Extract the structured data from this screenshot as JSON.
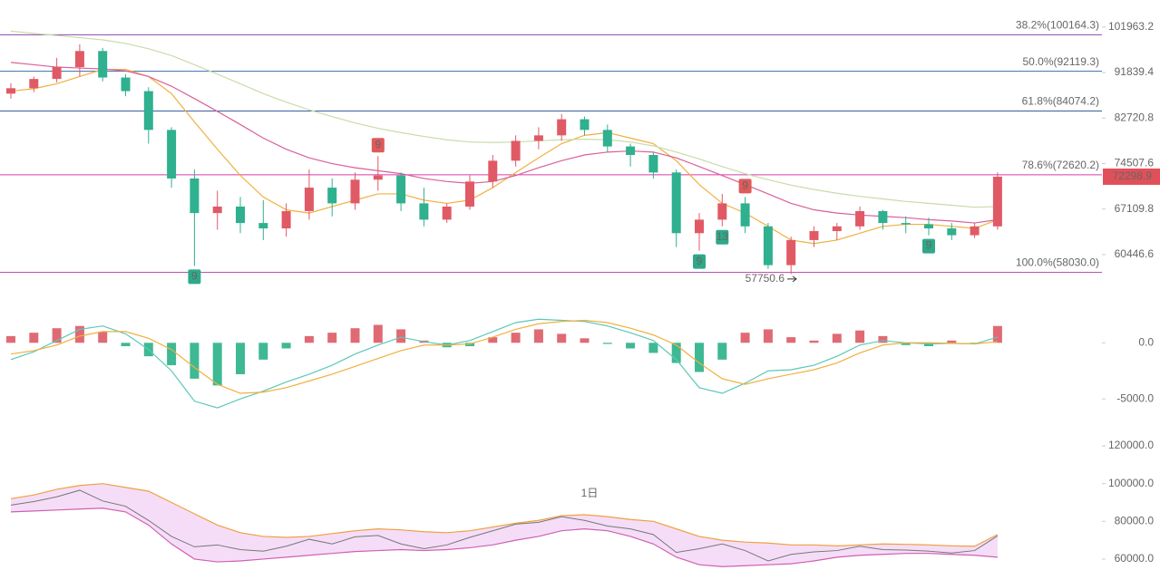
{
  "chart_data": [
    {
      "type": "candlestick",
      "log_scale": true,
      "ylim": [
        56900,
        108500
      ],
      "yticks": [
        101963.2,
        91839.4,
        82720.8,
        74507.6,
        67109.8,
        60446.6
      ],
      "up_color": "#e05a66",
      "down_color": "#2fb08f",
      "open": [
        87500,
        88600,
        90500,
        93000,
        96500,
        90800,
        88000,
        80500,
        72000,
        66500,
        67500,
        65000,
        64200,
        66800,
        70500,
        68000,
        71800,
        72500,
        68000,
        65500,
        67500,
        71500,
        75000,
        78500,
        79500,
        82500,
        80500,
        77500,
        76000,
        73000,
        63500,
        65500,
        68000,
        64500,
        59000,
        62500,
        63800,
        64500,
        66800,
        65000,
        64800,
        64200,
        63200,
        64500
      ],
      "high": [
        89600,
        91000,
        95000,
        98000,
        97200,
        91500,
        88800,
        81000,
        73500,
        70000,
        69000,
        68500,
        68000,
        73500,
        72000,
        73000,
        75800,
        73000,
        70500,
        68000,
        72500,
        76000,
        79500,
        81000,
        83500,
        83000,
        81500,
        78000,
        76500,
        73500,
        66500,
        69500,
        69000,
        65000,
        63000,
        64500,
        65000,
        67500,
        67000,
        66000,
        65800,
        65000,
        65000,
        73000
      ],
      "low": [
        86500,
        87800,
        89800,
        91000,
        90000,
        87000,
        78000,
        70500,
        58900,
        64000,
        63500,
        62500,
        63000,
        65500,
        66000,
        67000,
        70000,
        66800,
        64500,
        65000,
        67000,
        70500,
        74000,
        77000,
        78500,
        79500,
        76500,
        74000,
        72000,
        61500,
        61000,
        64500,
        63500,
        58500,
        57800,
        61500,
        62500,
        64000,
        64000,
        63500,
        63200,
        62500,
        62800,
        64000
      ],
      "close": [
        88600,
        90500,
        93000,
        96500,
        90800,
        88000,
        80500,
        72000,
        66500,
        67500,
        65000,
        64200,
        66800,
        70500,
        68000,
        71800,
        72500,
        68000,
        65500,
        67500,
        71500,
        75000,
        78500,
        79500,
        82500,
        80500,
        77500,
        76000,
        73000,
        63500,
        65500,
        68000,
        64500,
        59000,
        62500,
        63800,
        64500,
        66800,
        65000,
        64800,
        64200,
        63200,
        64500,
        72300
      ],
      "series": [
        {
          "color": "#f0b040",
          "values": [
            88000,
            88500,
            89500,
            91000,
            92500,
            92500,
            91000,
            87500,
            82000,
            77000,
            72500,
            69000,
            67000,
            66500,
            67500,
            68500,
            69500,
            69500,
            68500,
            68000,
            68500,
            70500,
            73000,
            75500,
            78000,
            79500,
            80000,
            79000,
            78000,
            75000,
            71000,
            68000,
            66500,
            64500,
            62500,
            62000,
            62500,
            63500,
            64500,
            64800,
            64800,
            64500,
            64200,
            65500
          ]
        },
        {
          "color": "#d9609a",
          "values": [
            94000,
            93500,
            93000,
            92800,
            92600,
            92200,
            91000,
            89000,
            86500,
            84000,
            81500,
            79000,
            77000,
            75500,
            74500,
            73800,
            73300,
            72800,
            72000,
            71500,
            71200,
            71500,
            72500,
            73800,
            75000,
            76000,
            76500,
            76700,
            76500,
            75500,
            74000,
            72500,
            71000,
            69500,
            68000,
            67000,
            66500,
            66200,
            66000,
            65800,
            65500,
            65300,
            65000,
            65500
          ]
        },
        {
          "color": "#c8dca8",
          "values": [
            101000,
            100500,
            100000,
            99500,
            99000,
            98200,
            97000,
            95500,
            93500,
            91500,
            89500,
            87500,
            85800,
            84300,
            83000,
            81800,
            80800,
            80000,
            79300,
            78700,
            78300,
            78200,
            78300,
            78500,
            78700,
            78800,
            78700,
            78300,
            77600,
            76500,
            75300,
            74000,
            72800,
            71800,
            70900,
            70200,
            69600,
            69100,
            68700,
            68300,
            68000,
            67700,
            67400,
            67500
          ]
        }
      ],
      "levels": [
        {
          "value": 100164.3,
          "label": "38.2%(100164.3)",
          "color": "#8e44ad"
        },
        {
          "value": 92119.3,
          "label": "50.0%(92119.3)",
          "color": "#3c6ea8"
        },
        {
          "value": 84074.2,
          "label": "61.8%(84074.2)",
          "color": "#3a5fa0"
        },
        {
          "value": 72620.2,
          "label": "78.6%(72620.2)",
          "color": "#d63aa6"
        },
        {
          "value": 58030,
          "label": "100.0%(58030.0)",
          "color": "#c050b0"
        }
      ],
      "last_price": 72298.9,
      "low_mark": {
        "value": 57750.6,
        "label": "57750.6"
      },
      "annotations": [
        "9",
        "9",
        "9",
        "13",
        "9",
        "9"
      ]
    },
    {
      "type": "macd",
      "ylim": [
        -6600,
        3900
      ],
      "yticks": [
        {
          "value": 0,
          "label": "0.0"
        },
        {
          "value": -5000,
          "label": "-5000.0"
        }
      ],
      "histogram": [
        600,
        900,
        1300,
        1500,
        1000,
        -300,
        -1200,
        -2000,
        -3200,
        -3800,
        -2800,
        -1500,
        -500,
        600,
        900,
        1300,
        1600,
        1200,
        200,
        -400,
        -300,
        500,
        900,
        1200,
        800,
        400,
        -100,
        -500,
        -900,
        -1800,
        -2600,
        -1500,
        900,
        1200,
        500,
        200,
        800,
        1100,
        600,
        -200,
        -300,
        200,
        -100,
        1500
      ],
      "series": [
        {
          "color": "#5cc8b8",
          "values": [
            -1500,
            -800,
            200,
            1200,
            1500,
            800,
            -600,
            -2500,
            -5200,
            -5800,
            -5000,
            -4300,
            -3500,
            -2800,
            -2000,
            -1000,
            -200,
            500,
            100,
            -200,
            200,
            1000,
            1800,
            2100,
            2000,
            1900,
            1500,
            900,
            200,
            -1500,
            -4000,
            -4500,
            -3600,
            -2500,
            -2400,
            -2000,
            -1200,
            -200,
            200,
            0,
            -100,
            -50,
            -100,
            500
          ]
        },
        {
          "color": "#f0b040",
          "values": [
            -1000,
            -700,
            -200,
            600,
            1000,
            1000,
            400,
            -600,
            -2200,
            -3700,
            -4500,
            -4400,
            -4000,
            -3400,
            -2800,
            -2100,
            -1400,
            -700,
            -200,
            -200,
            -100,
            500,
            1200,
            1700,
            1900,
            2000,
            1800,
            1300,
            700,
            -200,
            -1800,
            -3200,
            -3700,
            -3200,
            -2800,
            -2400,
            -1800,
            -900,
            -200,
            0,
            0,
            -50,
            -100,
            100
          ]
        }
      ]
    },
    {
      "type": "band",
      "title": "1日",
      "ylim": [
        54200,
        130600
      ],
      "yticks": [
        {
          "value": 120000,
          "label": "120000.0"
        },
        {
          "value": 100000,
          "label": "100000.0"
        },
        {
          "value": 80000,
          "label": "80000.0"
        },
        {
          "value": 60000,
          "label": "60000.0"
        }
      ],
      "series": [
        {
          "color": "#f0a040",
          "values": [
            92000,
            94000,
            97000,
            99000,
            100000,
            98000,
            96000,
            90000,
            84000,
            78000,
            74000,
            72000,
            71500,
            72000,
            73500,
            75000,
            76000,
            75500,
            74500,
            74000,
            75000,
            77000,
            79000,
            80500,
            83000,
            83500,
            82500,
            81000,
            80000,
            76000,
            72000,
            70000,
            69000,
            68500,
            67500,
            67500,
            67000,
            67500,
            68000,
            67800,
            67500,
            67000,
            66800,
            73000
          ]
        },
        {
          "color": "#d060b0",
          "values": [
            85000,
            85500,
            86000,
            86500,
            87000,
            85000,
            78000,
            68000,
            60000,
            58500,
            59000,
            60000,
            61000,
            62000,
            63000,
            64000,
            64500,
            65000,
            64500,
            65000,
            66000,
            67500,
            70000,
            72000,
            75000,
            76000,
            75000,
            72000,
            68000,
            61000,
            57000,
            56000,
            56500,
            57000,
            57500,
            59000,
            61000,
            62000,
            62500,
            63000,
            63000,
            62500,
            62000,
            61000
          ]
        }
      ]
    }
  ]
}
